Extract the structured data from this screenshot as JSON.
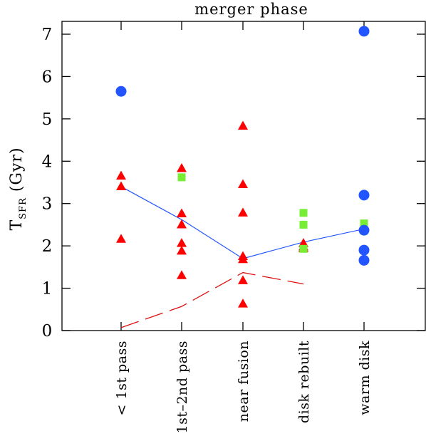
{
  "chart_data": {
    "type": "scatter",
    "title": "merger phase",
    "ylabel": "T",
    "ylabel_subscript": "SFR",
    "ylabel_unit": " (Gyr)",
    "ylim": [
      0,
      7.2
    ],
    "yticks": [
      0,
      1,
      2,
      3,
      4,
      5,
      6,
      7
    ],
    "ytick_labels": [
      "0",
      "1",
      "2",
      "3",
      "4",
      "5",
      "6",
      "7"
    ],
    "categories": [
      "< 1st pass",
      "1st–2nd pass",
      "near fusion",
      "disk rebuilt",
      "warm disk"
    ],
    "grid": false,
    "colors": {
      "triangles": "#ff0000",
      "squares": "#77ee33",
      "circles": "#2255ff",
      "median_line": "#2255ff",
      "dashed_line": "#dd1111"
    },
    "series": [
      {
        "marker": "triangle",
        "points": [
          [
            0,
            3.67
          ],
          [
            0,
            3.42
          ],
          [
            0,
            2.18
          ],
          [
            1,
            3.85
          ],
          [
            1,
            2.78
          ],
          [
            1,
            2.52
          ],
          [
            1,
            2.08
          ],
          [
            1,
            1.9
          ],
          [
            1,
            1.32
          ],
          [
            2,
            4.85
          ],
          [
            2,
            3.47
          ],
          [
            2,
            2.8
          ],
          [
            2,
            1.77
          ],
          [
            2,
            1.7
          ],
          [
            2,
            1.2
          ],
          [
            2,
            0.65
          ],
          [
            3,
            2.08
          ],
          [
            3,
            2.0
          ],
          [
            3,
            1.96
          ]
        ]
      },
      {
        "marker": "square",
        "points": [
          [
            1,
            3.62
          ],
          [
            3,
            2.78
          ],
          [
            3,
            2.5
          ],
          [
            3,
            1.93
          ],
          [
            4,
            2.53
          ]
        ]
      },
      {
        "marker": "circle",
        "points": [
          [
            0,
            5.65
          ],
          [
            4,
            7.07
          ],
          [
            4,
            3.2
          ],
          [
            4,
            2.37
          ],
          [
            4,
            1.9
          ],
          [
            4,
            1.66
          ]
        ]
      },
      {
        "marker": "line",
        "x": [
          0,
          1,
          2,
          3,
          4
        ],
        "values": [
          3.4,
          2.62,
          1.7,
          2.09,
          2.4
        ]
      },
      {
        "marker": "dashed-line",
        "x": [
          0,
          1,
          2,
          3
        ],
        "values": [
          0.07,
          0.57,
          1.37,
          1.1
        ]
      }
    ]
  }
}
